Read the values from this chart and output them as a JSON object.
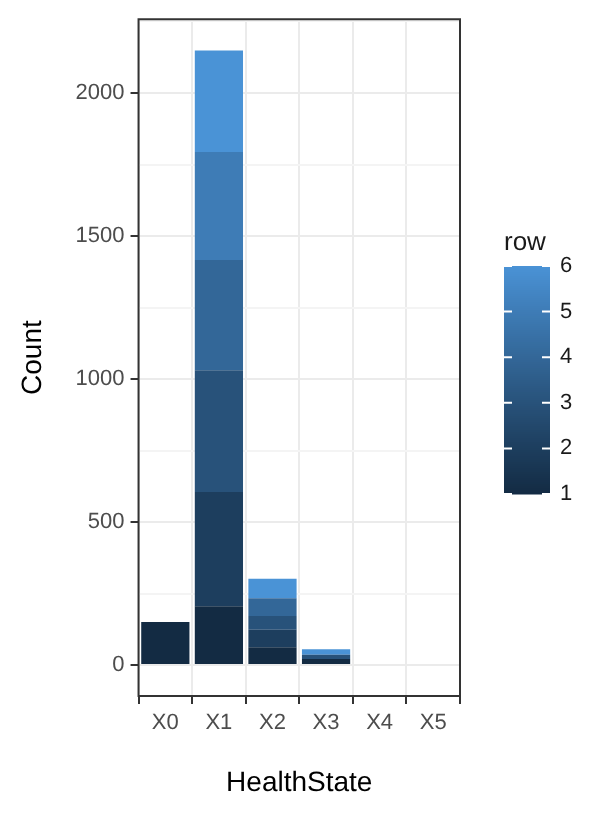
{
  "chart_data": {
    "type": "bar",
    "stacked": true,
    "xlabel": "HealthState",
    "ylabel": "Count",
    "clabel": "row",
    "categories": [
      "X0",
      "X1",
      "X2",
      "X3",
      "X4",
      "X5"
    ],
    "series": [
      {
        "color": "#132b43",
        "values": [
          151,
          206,
          62,
          21,
          null,
          null
        ]
      },
      {
        "color": "#1d3e5e",
        "values": [
          null,
          399,
          62,
          null,
          null,
          null
        ]
      },
      {
        "color": "#28527a",
        "values": [
          null,
          426,
          48,
          15,
          null,
          null
        ]
      },
      {
        "color": "#336798",
        "values": [
          null,
          385,
          62,
          null,
          null,
          null
        ]
      },
      {
        "color": "#3e7cb6",
        "values": [
          null,
          378,
          null,
          null,
          null,
          null
        ]
      },
      {
        "color": "#4a93d6",
        "values": [
          null,
          355,
          68,
          19,
          null,
          null
        ]
      }
    ],
    "ylim": [
      -108,
      2258
    ],
    "yticks": [
      0,
      {
        "value": 250,
        "label": null
      },
      500,
      {
        "value": 750,
        "label": null
      },
      1000,
      {
        "value": 1250,
        "label": null
      },
      1500,
      {
        "value": 1750,
        "label": null
      },
      2000,
      {
        "value": 2250,
        "label": null
      }
    ],
    "clim": [
      1,
      6
    ],
    "cticks": [
      1,
      2,
      3,
      4,
      5,
      6
    ],
    "grid": true,
    "legend": false
  }
}
